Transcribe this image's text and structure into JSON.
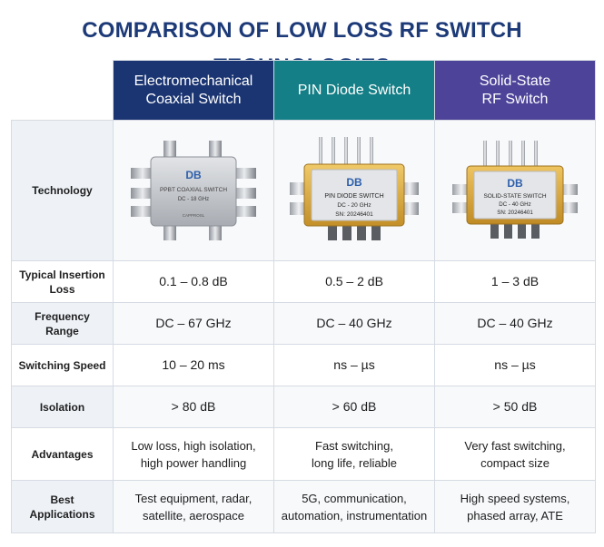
{
  "title": "COMPARISON OF LOW LOSS RF SWITCH TECHNOLOGIES",
  "columns": [
    {
      "lines": [
        "Electromechanical",
        "Coaxial Switch"
      ],
      "color": "#1b3572"
    },
    {
      "lines": [
        "PIN Diode Switch"
      ],
      "color": "#147f86"
    },
    {
      "lines": [
        "Solid-State",
        "RF Switch"
      ],
      "color": "#4d4499"
    }
  ],
  "technology_label": "Technology",
  "devices": [
    {
      "logo": "DB",
      "line1": "PPBT COAXIAL SWITCH",
      "line2": "DC - 18 GHz",
      "line3": "CAPPROSL",
      "body_color": "#b9bcc0"
    },
    {
      "logo": "DB",
      "line1": "PIN DIODE SWITCH",
      "line2": "DC - 20 GHz",
      "line3": "SN: 20246401",
      "body_color": "#d9a93a"
    },
    {
      "logo": "DB",
      "line1": "SOLID-STATE SWITCH",
      "line2": "DC - 40 GHz",
      "line3": "SN: 20246401",
      "body_color": "#d7a538"
    }
  ],
  "rows": [
    {
      "label": [
        "Typical Insertion",
        "Loss"
      ],
      "values": [
        [
          "0.1 – 0.8 dB"
        ],
        [
          "0.5 – 2 dB"
        ],
        [
          "1 – 3 dB"
        ]
      ]
    },
    {
      "label": [
        "Frequency Range"
      ],
      "values": [
        [
          "DC – 67 GHz"
        ],
        [
          "DC – 40 GHz"
        ],
        [
          "DC – 40 GHz"
        ]
      ]
    },
    {
      "label": [
        "Switching Speed"
      ],
      "values": [
        [
          "10 – 20 ms"
        ],
        [
          "ns – µs"
        ],
        [
          "ns – µs"
        ]
      ]
    },
    {
      "label": [
        "Isolation"
      ],
      "values": [
        [
          "> 80 dB"
        ],
        [
          "> 60 dB"
        ],
        [
          "> 50 dB"
        ]
      ]
    },
    {
      "label": [
        "Advantages"
      ],
      "values": [
        [
          "Low loss, high isolation,",
          "high power handling"
        ],
        [
          "Fast switching,",
          "long life, reliable"
        ],
        [
          "Very fast switching,",
          "compact size"
        ]
      ]
    },
    {
      "label": [
        "Best Applications"
      ],
      "values": [
        [
          "Test equipment, radar,",
          "satellite, aerospace"
        ],
        [
          "5G, communication,",
          "automation, instrumentation"
        ],
        [
          "High speed systems,",
          "phased array, ATE"
        ]
      ]
    }
  ]
}
